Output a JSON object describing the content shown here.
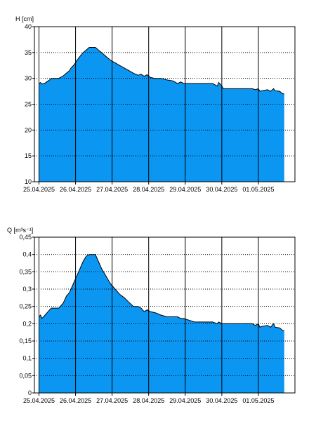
{
  "chart_data": [
    {
      "type": "area",
      "ylabel": "H [cm]",
      "ylim": [
        10,
        40
      ],
      "y_ticks": [
        "10",
        "15",
        "20",
        "25",
        "30",
        "35",
        "40"
      ],
      "x_range": [
        "2025-04-24T21:00",
        "2025-05-02T00:00"
      ],
      "x_ticks": [
        {
          "at": "2025-04-25",
          "label": "25.04.2025"
        },
        {
          "at": "2025-04-26",
          "label": "26.04.2025"
        },
        {
          "at": "2025-04-27",
          "label": "27.04.2025"
        },
        {
          "at": "2025-04-28",
          "label": "28.04.2025"
        },
        {
          "at": "2025-04-29",
          "label": "29.04.2025"
        },
        {
          "at": "2025-04-30",
          "label": "30.04.2025"
        },
        {
          "at": "2025-05-01",
          "label": "01.05.2025"
        }
      ],
      "fill_color": "#0b96f2",
      "line_color": "#000000",
      "vertical_gridlines": "solid",
      "horizontal_gridlines": "dotted",
      "series": [
        {
          "x": [
            "2025-04-25T00:00",
            "2025-04-25T01:00",
            "2025-04-25T02:00",
            "2025-04-25T03:00",
            "2025-04-25T04:00",
            "2025-04-25T05:00",
            "2025-04-25T06:00",
            "2025-04-25T07:00",
            "2025-04-25T08:00",
            "2025-04-25T10:00",
            "2025-04-25T13:00",
            "2025-04-25T16:00",
            "2025-04-25T18:00",
            "2025-04-25T20:00",
            "2025-04-25T21:00",
            "2025-04-25T23:00",
            "2025-04-26T01:00",
            "2025-04-26T03:00",
            "2025-04-26T05:00",
            "2025-04-26T07:00",
            "2025-04-26T09:00",
            "2025-04-26T11:00",
            "2025-04-26T13:00",
            "2025-04-26T15:00",
            "2025-04-26T17:00",
            "2025-04-26T19:00",
            "2025-04-26T21:00",
            "2025-04-26T23:00",
            "2025-04-27T02:00",
            "2025-04-27T05:00",
            "2025-04-27T08:00",
            "2025-04-27T11:00",
            "2025-04-27T14:00",
            "2025-04-27T17:00",
            "2025-04-27T19:00",
            "2025-04-27T21:00",
            "2025-04-27T23:00",
            "2025-04-28T01:00",
            "2025-04-28T04:00",
            "2025-04-28T08:00",
            "2025-04-28T12:00",
            "2025-04-28T16:00",
            "2025-04-28T19:00",
            "2025-04-28T21:00",
            "2025-04-28T23:00",
            "2025-04-29T06:00",
            "2025-04-29T12:00",
            "2025-04-29T18:00",
            "2025-04-29T21:00",
            "2025-04-29T22:00",
            "2025-04-30T00:00",
            "2025-04-30T01:00",
            "2025-04-30T02:00",
            "2025-04-30T03:00",
            "2025-04-30T12:00",
            "2025-04-30T20:00",
            "2025-04-30T22:00",
            "2025-05-01T00:00",
            "2025-05-01T01:00",
            "2025-05-01T02:00",
            "2025-05-01T06:00",
            "2025-05-01T08:00",
            "2025-05-01T10:00",
            "2025-05-01T11:00",
            "2025-05-01T14:00",
            "2025-05-01T16:00",
            "2025-05-01T17:00"
          ],
          "values": [
            29,
            29.2,
            28.9,
            29,
            29.1,
            29.3,
            29.5,
            29.7,
            30,
            30,
            30,
            30.5,
            31,
            31.5,
            32,
            32.6,
            33.5,
            34.3,
            35,
            35.5,
            36,
            36,
            36,
            35.5,
            35,
            34.5,
            34,
            33.5,
            33,
            32.5,
            32,
            31.5,
            31,
            30.6,
            30.8,
            30.4,
            30.7,
            30.2,
            30,
            30,
            29.7,
            29.5,
            29,
            29.3,
            29,
            29,
            29,
            29,
            28.5,
            29.2,
            28.5,
            28,
            28,
            28,
            28,
            28,
            27.8,
            28,
            27.5,
            27.6,
            27.8,
            27.5,
            28,
            27.6,
            27.5,
            27,
            27
          ]
        }
      ]
    },
    {
      "type": "area",
      "ylabel": "Q [m³s⁻¹]",
      "ylim": [
        0,
        0.45
      ],
      "y_ticks": [
        "0",
        "0,05",
        "0,1",
        "0,15",
        "0,2",
        "0,25",
        "0,3",
        "0,35",
        "0,4",
        "0,45"
      ],
      "x_range": [
        "2025-04-24T21:00",
        "2025-05-02T00:00"
      ],
      "x_ticks": [
        {
          "at": "2025-04-25",
          "label": "25.04.2025"
        },
        {
          "at": "2025-04-26",
          "label": "26.04.2025"
        },
        {
          "at": "2025-04-27",
          "label": "27.04.2025"
        },
        {
          "at": "2025-04-28",
          "label": "28.04.2025"
        },
        {
          "at": "2025-04-29",
          "label": "29.04.2025"
        },
        {
          "at": "2025-04-30",
          "label": "30.04.2025"
        },
        {
          "at": "2025-05-01",
          "label": "01.05.2025"
        }
      ],
      "fill_color": "#0b96f2",
      "line_color": "#000000",
      "vertical_gridlines": "solid",
      "horizontal_gridlines": "dotted",
      "series": [
        {
          "x": [
            "2025-04-25T00:00",
            "2025-04-25T01:00",
            "2025-04-25T02:00",
            "2025-04-25T03:00",
            "2025-04-25T04:00",
            "2025-04-25T05:00",
            "2025-04-25T06:00",
            "2025-04-25T07:00",
            "2025-04-25T08:00",
            "2025-04-25T10:00",
            "2025-04-25T13:00",
            "2025-04-25T16:00",
            "2025-04-25T18:00",
            "2025-04-25T20:00",
            "2025-04-25T21:00",
            "2025-04-25T23:00",
            "2025-04-26T01:00",
            "2025-04-26T03:00",
            "2025-04-26T05:00",
            "2025-04-26T07:00",
            "2025-04-26T09:00",
            "2025-04-26T11:00",
            "2025-04-26T13:00",
            "2025-04-26T15:00",
            "2025-04-26T17:00",
            "2025-04-26T19:00",
            "2025-04-26T21:00",
            "2025-04-26T23:00",
            "2025-04-27T02:00",
            "2025-04-27T05:00",
            "2025-04-27T08:00",
            "2025-04-27T11:00",
            "2025-04-27T14:00",
            "2025-04-27T17:00",
            "2025-04-27T19:00",
            "2025-04-27T21:00",
            "2025-04-27T23:00",
            "2025-04-28T01:00",
            "2025-04-28T04:00",
            "2025-04-28T08:00",
            "2025-04-28T12:00",
            "2025-04-28T16:00",
            "2025-04-28T19:00",
            "2025-04-28T21:00",
            "2025-04-28T23:00",
            "2025-04-29T06:00",
            "2025-04-29T12:00",
            "2025-04-29T18:00",
            "2025-04-29T21:00",
            "2025-04-29T22:00",
            "2025-04-30T00:00",
            "2025-04-30T01:00",
            "2025-04-30T02:00",
            "2025-04-30T03:00",
            "2025-04-30T12:00",
            "2025-04-30T20:00",
            "2025-04-30T22:00",
            "2025-05-01T00:00",
            "2025-05-01T01:00",
            "2025-05-01T02:00",
            "2025-05-01T06:00",
            "2025-05-01T08:00",
            "2025-05-01T10:00",
            "2025-05-01T11:00",
            "2025-05-01T14:00",
            "2025-05-01T16:00",
            "2025-05-01T17:00"
          ],
          "values": [
            0.22,
            0.225,
            0.215,
            0.22,
            0.225,
            0.23,
            0.235,
            0.24,
            0.245,
            0.245,
            0.245,
            0.26,
            0.28,
            0.29,
            0.3,
            0.32,
            0.34,
            0.36,
            0.38,
            0.395,
            0.4,
            0.4,
            0.4,
            0.38,
            0.36,
            0.345,
            0.33,
            0.315,
            0.3,
            0.285,
            0.275,
            0.262,
            0.25,
            0.25,
            0.245,
            0.235,
            0.24,
            0.235,
            0.232,
            0.225,
            0.22,
            0.22,
            0.22,
            0.215,
            0.215,
            0.205,
            0.205,
            0.205,
            0.2,
            0.205,
            0.2,
            0.2,
            0.2,
            0.2,
            0.2,
            0.2,
            0.195,
            0.2,
            0.19,
            0.192,
            0.195,
            0.19,
            0.2,
            0.19,
            0.188,
            0.18,
            0.18
          ]
        }
      ]
    }
  ]
}
